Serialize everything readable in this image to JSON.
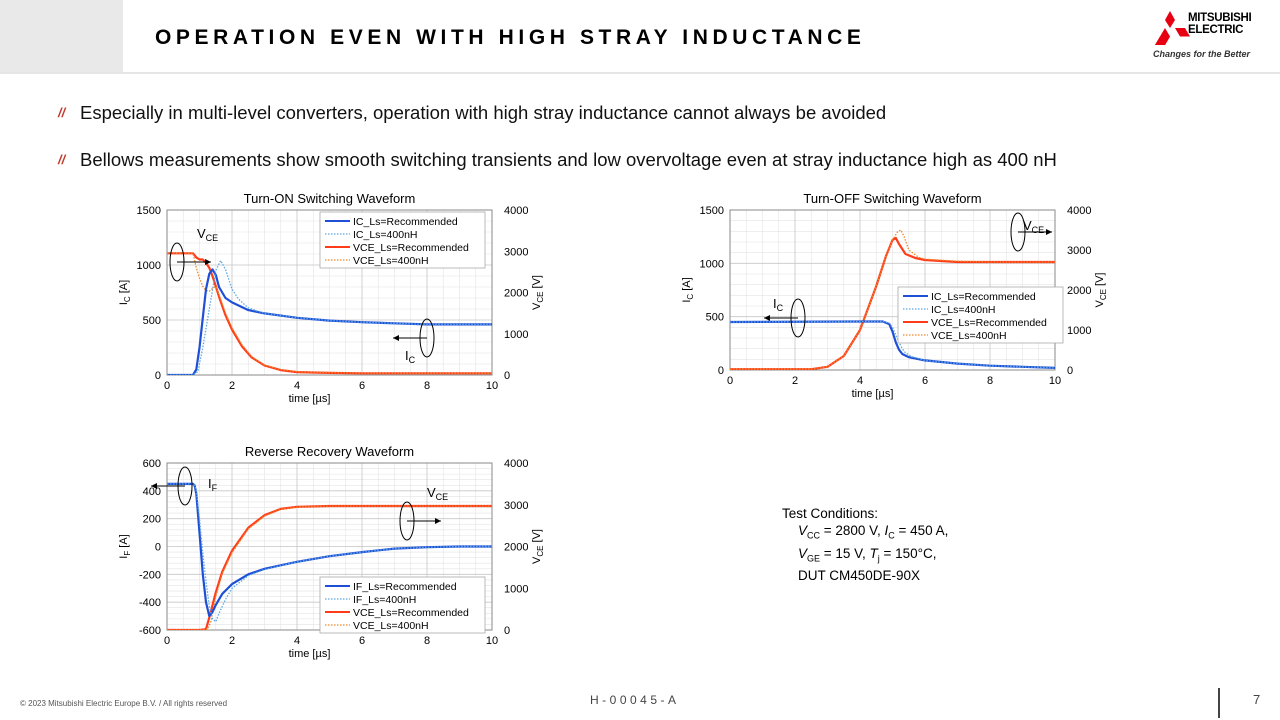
{
  "header": {
    "title": "OPERATION EVEN WITH HIGH STRAY INDUCTANCE",
    "logo_line1": "MITSUBISHI",
    "logo_line2": "ELECTRIC",
    "logo_slogan": "Changes for the Better"
  },
  "bullets": [
    "Especially in multi-level converters, operation with high stray inductance cannot always be avoided",
    "Bellows measurements show smooth switching transients and low overvoltage even at stray inductance high as 400 nH"
  ],
  "bullet_mark": "//",
  "colors": {
    "ic_recommended": "#1f4fd6",
    "ic_400nh": "#5aa8e6",
    "vce_recommended": "#ff3b1a",
    "vce_400nh": "#f0882a",
    "accent": "#c0392b"
  },
  "chart_data": [
    {
      "type": "line",
      "title": "Turn-ON Switching Waveform",
      "xlabel": "time [µs]",
      "ylabel_left": "I_C [A]",
      "ylabel_right": "V_CE [V]",
      "xlim": [
        0,
        10
      ],
      "ylim_left": [
        0,
        1500
      ],
      "ylim_right": [
        0,
        4000
      ],
      "x_ticks": [
        "0",
        "2",
        "4",
        "6",
        "8",
        "10"
      ],
      "y_ticks_left": [
        "0",
        "500",
        "1000",
        "1500"
      ],
      "y_ticks_right": [
        "0",
        "1000",
        "2000",
        "3000",
        "4000"
      ],
      "grid": true,
      "legend": "top-right",
      "annotations": [
        {
          "text": "V",
          "sub": "CE"
        },
        {
          "text": "I",
          "sub": "C"
        }
      ],
      "series": [
        {
          "name": "IC_Ls=Recommended",
          "axis": "left",
          "style": "solid",
          "color": "#1f4fd6",
          "x": [
            0,
            0.8,
            0.9,
            1.0,
            1.1,
            1.2,
            1.3,
            1.4,
            1.5,
            1.6,
            1.8,
            2.0,
            2.5,
            3,
            4,
            5,
            6,
            7,
            8,
            9,
            10
          ],
          "y": [
            0,
            0,
            50,
            250,
            520,
            780,
            920,
            960,
            910,
            800,
            700,
            660,
            590,
            560,
            520,
            495,
            480,
            470,
            460,
            460,
            460
          ]
        },
        {
          "name": "IC_Ls=400nH",
          "axis": "left",
          "style": "dotted",
          "color": "#5aa8e6",
          "x": [
            0,
            0.8,
            0.95,
            1.1,
            1.3,
            1.5,
            1.65,
            1.8,
            2.0,
            2.2,
            2.5,
            3,
            4,
            5,
            6,
            7,
            8,
            9,
            10
          ],
          "y": [
            0,
            0,
            30,
            250,
            600,
            950,
            1040,
            960,
            780,
            690,
            610,
            560,
            520,
            495,
            480,
            470,
            460,
            460,
            460
          ]
        },
        {
          "name": "VCE_Ls=Recommended",
          "axis": "right",
          "style": "solid",
          "color": "#ff3b1a",
          "x": [
            0,
            0.8,
            0.9,
            1.0,
            1.1,
            1.2,
            1.3,
            1.4,
            1.5,
            1.6,
            1.8,
            2.0,
            2.3,
            2.6,
            3.0,
            3.5,
            4,
            5,
            6,
            7,
            8,
            9,
            10
          ],
          "y": [
            2950,
            2950,
            2850,
            2800,
            2800,
            2720,
            2600,
            2400,
            2150,
            1900,
            1450,
            1100,
            700,
            430,
            230,
            120,
            70,
            50,
            40,
            40,
            40,
            40,
            40
          ]
        },
        {
          "name": "VCE_Ls=400nH",
          "axis": "right",
          "style": "dotted",
          "color": "#f0882a",
          "x": [
            0,
            0.8,
            0.9,
            1.0,
            1.1,
            1.2,
            1.3,
            1.4,
            1.5,
            1.6,
            1.8,
            2.0,
            2.3,
            2.6,
            3.0,
            3.5,
            4,
            5,
            6,
            7,
            8,
            9,
            10
          ],
          "y": [
            2950,
            2950,
            2600,
            2350,
            2150,
            2050,
            2030,
            2100,
            2150,
            1950,
            1500,
            1150,
            740,
            450,
            240,
            130,
            80,
            55,
            45,
            40,
            40,
            40,
            40
          ]
        }
      ]
    },
    {
      "type": "line",
      "title": "Turn-OFF Switching Waveform",
      "xlabel": "time [µs]",
      "ylabel_left": "I_C [A]",
      "ylabel_right": "V_CE [V]",
      "xlim": [
        0,
        10
      ],
      "ylim_left": [
        0,
        1500
      ],
      "ylim_right": [
        0,
        4000
      ],
      "x_ticks": [
        "0",
        "2",
        "4",
        "6",
        "8",
        "10"
      ],
      "y_ticks_left": [
        "0",
        "500",
        "1000",
        "1500"
      ],
      "y_ticks_right": [
        "0",
        "1000",
        "2000",
        "3000",
        "4000"
      ],
      "grid": true,
      "legend": "bottom-right",
      "annotations": [
        {
          "text": "V",
          "sub": "CE"
        },
        {
          "text": "I",
          "sub": "C"
        }
      ],
      "series": [
        {
          "name": "IC_Ls=Recommended",
          "axis": "left",
          "style": "solid",
          "color": "#1f4fd6",
          "x": [
            0,
            4.0,
            4.7,
            4.9,
            5.0,
            5.1,
            5.2,
            5.3,
            5.5,
            6,
            7,
            8,
            9,
            10
          ],
          "y": [
            450,
            455,
            455,
            430,
            360,
            260,
            190,
            150,
            120,
            90,
            60,
            40,
            30,
            20
          ]
        },
        {
          "name": "IC_Ls=400nH",
          "axis": "left",
          "style": "dotted",
          "color": "#5aa8e6",
          "x": [
            0,
            4.0,
            4.7,
            4.9,
            5.0,
            5.1,
            5.2,
            5.3,
            5.4,
            5.6,
            6,
            7,
            8,
            9,
            10
          ],
          "y": [
            450,
            455,
            455,
            440,
            400,
            330,
            260,
            200,
            160,
            125,
            90,
            60,
            40,
            30,
            20
          ]
        },
        {
          "name": "VCE_Ls=Recommended",
          "axis": "right",
          "style": "solid",
          "color": "#ff3b1a",
          "x": [
            0,
            2.5,
            3.0,
            3.5,
            4.0,
            4.5,
            4.8,
            5.0,
            5.1,
            5.2,
            5.4,
            5.7,
            6,
            7,
            8,
            9,
            10
          ],
          "y": [
            20,
            20,
            80,
            350,
            1000,
            2100,
            2850,
            3250,
            3300,
            3150,
            2900,
            2800,
            2750,
            2700,
            2700,
            2700,
            2700
          ]
        },
        {
          "name": "VCE_Ls=400nH",
          "axis": "right",
          "style": "dotted",
          "color": "#f0882a",
          "x": [
            0,
            2.5,
            3.0,
            3.5,
            4.0,
            4.5,
            4.8,
            5.0,
            5.15,
            5.25,
            5.35,
            5.5,
            5.8,
            6,
            7,
            8,
            9,
            10
          ],
          "y": [
            20,
            20,
            80,
            350,
            1000,
            2100,
            2850,
            3250,
            3450,
            3500,
            3350,
            3000,
            2820,
            2770,
            2720,
            2700,
            2700,
            2700
          ]
        }
      ]
    },
    {
      "type": "line",
      "title": "Reverse Recovery Waveform",
      "xlabel": "time [µs]",
      "ylabel_left": "I_F [A]",
      "ylabel_right": "V_CE [V]",
      "xlim": [
        0,
        10
      ],
      "ylim_left": [
        -600,
        600
      ],
      "ylim_right": [
        0,
        4000
      ],
      "x_ticks": [
        "0",
        "2",
        "4",
        "6",
        "8",
        "10"
      ],
      "y_ticks_left": [
        "-600",
        "-400",
        "-200",
        "0",
        "200",
        "400",
        "600"
      ],
      "y_ticks_right": [
        "0",
        "1000",
        "2000",
        "3000",
        "4000"
      ],
      "grid": true,
      "legend": "bottom-right",
      "annotations": [
        {
          "text": "I",
          "sub": "F"
        },
        {
          "text": "V",
          "sub": "CE"
        }
      ],
      "series": [
        {
          "name": "IF_Ls=Recommended",
          "axis": "left",
          "style": "solid",
          "color": "#1f4fd6",
          "x": [
            0,
            0.8,
            0.85,
            0.9,
            1.0,
            1.1,
            1.2,
            1.3,
            1.4,
            1.5,
            1.7,
            2.0,
            2.5,
            3,
            4,
            5,
            6,
            7,
            8,
            9,
            10
          ],
          "y": [
            450,
            450,
            440,
            380,
            100,
            -200,
            -400,
            -500,
            -470,
            -420,
            -340,
            -270,
            -200,
            -160,
            -110,
            -70,
            -40,
            -15,
            -5,
            0,
            0
          ]
        },
        {
          "name": "IF_Ls=400nH",
          "axis": "left",
          "style": "dotted",
          "color": "#5aa8e6",
          "x": [
            0,
            0.8,
            0.85,
            0.9,
            1.0,
            1.1,
            1.2,
            1.3,
            1.4,
            1.5,
            1.6,
            1.8,
            2.0,
            2.5,
            3,
            4,
            5,
            6,
            7,
            8,
            9,
            10
          ],
          "y": [
            450,
            450,
            440,
            400,
            200,
            -50,
            -250,
            -430,
            -520,
            -540,
            -480,
            -380,
            -300,
            -210,
            -165,
            -110,
            -70,
            -40,
            -15,
            -5,
            0,
            0
          ]
        },
        {
          "name": "VCE_Ls=Recommended",
          "axis": "right",
          "style": "solid",
          "color": "#ff3b1a",
          "x": [
            0,
            1.0,
            1.2,
            1.3,
            1.5,
            1.7,
            2.0,
            2.5,
            3,
            3.5,
            4,
            5,
            6,
            7,
            8,
            9,
            10
          ],
          "y": [
            0,
            0,
            20,
            300,
            900,
            1400,
            1900,
            2450,
            2750,
            2900,
            2950,
            2970,
            2970,
            2970,
            2970,
            2970,
            2970
          ]
        },
        {
          "name": "VCE_Ls=400nH",
          "axis": "right",
          "style": "dotted",
          "color": "#f0882a",
          "x": [
            0,
            1.0,
            1.25,
            1.35,
            1.5,
            1.7,
            2.0,
            2.5,
            3,
            3.5,
            4,
            5,
            6,
            7,
            8,
            9,
            10
          ],
          "y": [
            0,
            0,
            20,
            200,
            800,
            1350,
            1850,
            2420,
            2730,
            2890,
            2945,
            2970,
            2970,
            2970,
            2970,
            2970,
            2970
          ]
        }
      ]
    }
  ],
  "test_conditions": {
    "heading": "Test Conditions:",
    "line1": "VCC = 2800 V, IC = 450 A,",
    "line2": "VGE = 15 V, Tj  = 150°C,",
    "line3": "DUT CM450DE-90X"
  },
  "footer": {
    "copyright": "© 2023 Mitsubishi Electric Europe B.V. / All rights reserved",
    "doc_code": "H-00045-A",
    "page_number": "7"
  }
}
